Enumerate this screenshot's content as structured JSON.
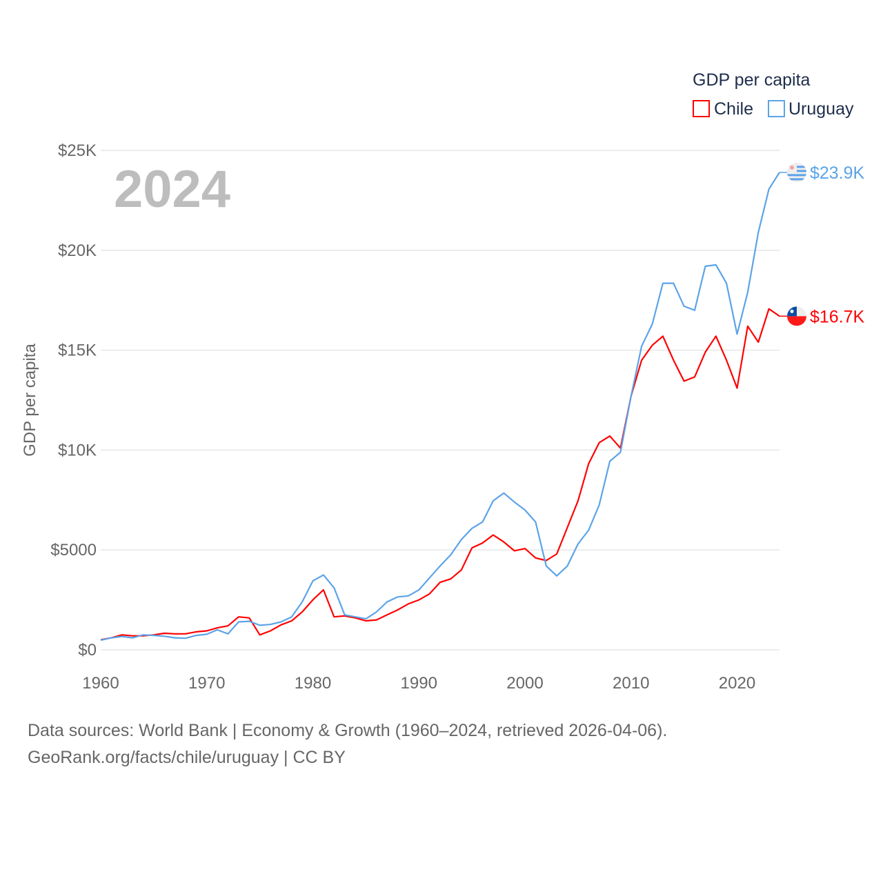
{
  "chart_data": {
    "type": "line",
    "title": "GDP per capita",
    "ylabel": "GDP per capita",
    "xlabel": "",
    "year_label": "2024",
    "xlim": [
      1960,
      2024
    ],
    "ylim": [
      0,
      25000
    ],
    "x_ticks": [
      "1960",
      "1970",
      "1980",
      "1990",
      "2000",
      "2010",
      "2020"
    ],
    "x_tick_values": [
      1960,
      1970,
      1980,
      1990,
      2000,
      2010,
      2020
    ],
    "y_ticks": [
      "$0",
      "$5000",
      "$10K",
      "$15K",
      "$20K",
      "$25K"
    ],
    "y_tick_values": [
      0,
      5000,
      10000,
      15000,
      20000,
      25000
    ],
    "grid": true,
    "legend_position": "top-right",
    "start_year": 1960,
    "series": [
      {
        "name": "Chile",
        "color": "#ff0000",
        "end_label": "$16.7K",
        "flag": "chile-flag",
        "values": [
          500,
          600,
          750,
          700,
          700,
          750,
          830,
          800,
          800,
          900,
          950,
          1100,
          1200,
          1650,
          1600,
          750,
          950,
          1250,
          1450,
          1900,
          2500,
          3000,
          1650,
          1700,
          1600,
          1450,
          1500,
          1750,
          2000,
          2300,
          2500,
          2800,
          3380,
          3550,
          4000,
          5100,
          5350,
          5750,
          5400,
          4960,
          5070,
          4600,
          4470,
          4800,
          6130,
          7460,
          9320,
          10370,
          10700,
          10100,
          12700,
          14500,
          15240,
          15700,
          14500,
          13450,
          13660,
          14900,
          15700,
          14500,
          13100,
          16200,
          15400,
          17070,
          16700
        ]
      },
      {
        "name": "Uruguay",
        "color": "#5ba3e8",
        "end_label": "$23.9K",
        "flag": "uruguay-flag",
        "values": [
          480,
          600,
          670,
          600,
          750,
          720,
          680,
          600,
          580,
          720,
          780,
          1000,
          800,
          1400,
          1430,
          1230,
          1270,
          1400,
          1650,
          2400,
          3450,
          3750,
          3100,
          1750,
          1650,
          1550,
          1900,
          2400,
          2650,
          2700,
          3000,
          3600,
          4200,
          4760,
          5520,
          6080,
          6400,
          7460,
          7850,
          7400,
          7000,
          6400,
          4200,
          3700,
          4200,
          5300,
          5990,
          7250,
          9440,
          9890,
          12700,
          15200,
          16300,
          18350,
          18350,
          17200,
          17000,
          19200,
          19270,
          18350,
          15800,
          17900,
          20900,
          23060,
          23900
        ]
      }
    ]
  },
  "footer": {
    "line1": "Data sources: World Bank | Economy & Growth (1960–2024, retrieved 2026-04-06).",
    "line2": "GeoRank.org/facts/chile/uruguay | CC BY"
  }
}
